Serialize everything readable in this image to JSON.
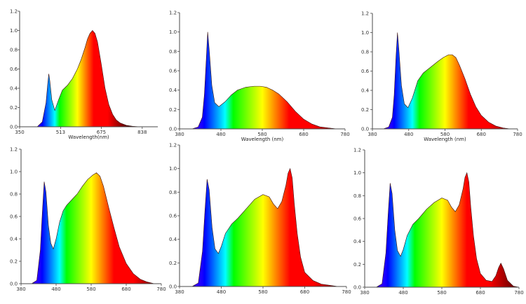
{
  "chart_data": [
    {
      "type": "area",
      "panel": "top-left",
      "xlabel": "Wavelength(nm)",
      "xlim": [
        350,
        900
      ],
      "ylim": [
        0,
        1.2
      ],
      "x_ticks": [
        "350",
        "513",
        "675",
        "838"
      ],
      "y_ticks": [
        "0.0",
        "0.2",
        "0.4",
        "0.6",
        "0.8",
        "1.0",
        "1.2"
      ],
      "x": [
        350,
        420,
        440,
        455,
        462,
        466,
        470,
        478,
        490,
        505,
        520,
        540,
        560,
        580,
        595,
        610,
        620,
        630,
        640,
        650,
        660,
        675,
        690,
        705,
        720,
        735,
        750,
        775,
        800,
        830,
        860,
        900
      ],
      "values": [
        0,
        0,
        0.05,
        0.25,
        0.45,
        0.55,
        0.48,
        0.28,
        0.17,
        0.28,
        0.38,
        0.43,
        0.5,
        0.6,
        0.7,
        0.82,
        0.91,
        0.97,
        1.0,
        0.97,
        0.88,
        0.65,
        0.4,
        0.23,
        0.13,
        0.07,
        0.04,
        0.015,
        0.005,
        0,
        0,
        0
      ]
    },
    {
      "type": "area",
      "panel": "top-middle",
      "xlabel": "Wavelength (nm)",
      "xlim": [
        380,
        780
      ],
      "ylim": [
        0,
        1.2
      ],
      "x_ticks": [
        "380",
        "480",
        "580",
        "680",
        "780"
      ],
      "y_ticks": [
        "0.0",
        "0.2",
        "0.4",
        "0.6",
        "0.8",
        "1.0",
        "1.2"
      ],
      "x": [
        380,
        410,
        425,
        435,
        440,
        445,
        448,
        452,
        458,
        465,
        475,
        490,
        505,
        520,
        540,
        560,
        575,
        590,
        605,
        620,
        640,
        660,
        680,
        700,
        720,
        740,
        760,
        780
      ],
      "values": [
        0,
        0,
        0.02,
        0.12,
        0.35,
        0.75,
        1.0,
        0.8,
        0.45,
        0.27,
        0.23,
        0.28,
        0.35,
        0.4,
        0.43,
        0.44,
        0.44,
        0.43,
        0.4,
        0.36,
        0.28,
        0.18,
        0.1,
        0.05,
        0.02,
        0.01,
        0,
        0
      ]
    },
    {
      "type": "area",
      "panel": "top-right",
      "xlabel": "Wavelength (nm)",
      "xlim": [
        380,
        780
      ],
      "ylim": [
        0,
        1.2
      ],
      "x_ticks": [
        "380",
        "480",
        "580",
        "680",
        "780"
      ],
      "y_ticks": [
        "0.0",
        "0.2",
        "0.4",
        "0.6",
        "0.8",
        "1.0",
        "1.2"
      ],
      "x": [
        380,
        410,
        425,
        435,
        440,
        445,
        449,
        453,
        460,
        468,
        478,
        490,
        505,
        520,
        540,
        560,
        575,
        590,
        600,
        610,
        620,
        635,
        650,
        665,
        680,
        700,
        720,
        740,
        760,
        780
      ],
      "values": [
        0,
        0,
        0.02,
        0.12,
        0.35,
        0.75,
        1.0,
        0.82,
        0.45,
        0.26,
        0.22,
        0.32,
        0.5,
        0.58,
        0.64,
        0.7,
        0.74,
        0.77,
        0.77,
        0.74,
        0.66,
        0.52,
        0.36,
        0.23,
        0.14,
        0.07,
        0.03,
        0.01,
        0,
        0
      ]
    },
    {
      "type": "area",
      "panel": "bottom-left",
      "xlabel": "",
      "xlim": [
        380,
        780
      ],
      "ylim": [
        0,
        1.2
      ],
      "x_ticks": [
        "380",
        "480",
        "580",
        "680",
        "780"
      ],
      "y_ticks": [
        "0.0",
        "0.2",
        "0.4",
        "0.6",
        "0.8",
        "1.0",
        "1.2"
      ],
      "x": [
        380,
        410,
        425,
        435,
        441,
        446,
        451,
        458,
        465,
        472,
        480,
        490,
        500,
        510,
        525,
        540,
        555,
        570,
        585,
        595,
        605,
        615,
        630,
        645,
        660,
        680,
        700,
        720,
        740,
        760,
        780
      ],
      "values": [
        0,
        0,
        0.03,
        0.3,
        0.65,
        0.91,
        0.82,
        0.52,
        0.36,
        0.31,
        0.4,
        0.55,
        0.65,
        0.7,
        0.75,
        0.8,
        0.87,
        0.93,
        0.97,
        0.99,
        0.96,
        0.87,
        0.68,
        0.5,
        0.33,
        0.18,
        0.09,
        0.04,
        0.015,
        0,
        0
      ]
    },
    {
      "type": "area",
      "panel": "bottom-middle",
      "xlabel": "",
      "xlim": [
        380,
        780
      ],
      "ylim": [
        0,
        1.2
      ],
      "x_ticks": [
        "380",
        "480",
        "580",
        "680",
        "780"
      ],
      "y_ticks": [
        "0.0",
        "0.2",
        "0.4",
        "0.6",
        "0.8",
        "1.0",
        "1.2"
      ],
      "x": [
        380,
        410,
        425,
        435,
        441,
        446,
        451,
        458,
        465,
        473,
        480,
        490,
        505,
        520,
        540,
        560,
        580,
        595,
        605,
        615,
        625,
        635,
        640,
        645,
        650,
        655,
        662,
        670,
        680,
        700,
        720,
        740,
        760,
        780
      ],
      "values": [
        0,
        0,
        0.03,
        0.3,
        0.65,
        0.91,
        0.82,
        0.5,
        0.32,
        0.28,
        0.34,
        0.45,
        0.53,
        0.58,
        0.66,
        0.74,
        0.78,
        0.76,
        0.7,
        0.66,
        0.72,
        0.86,
        0.96,
        1.0,
        0.92,
        0.7,
        0.45,
        0.25,
        0.12,
        0.05,
        0.02,
        0.01,
        0,
        0
      ]
    },
    {
      "type": "area",
      "panel": "bottom-right",
      "xlabel": "",
      "xlim": [
        380,
        780
      ],
      "ylim": [
        0,
        1.2
      ],
      "x_ticks": [
        "380",
        "480",
        "580",
        "680",
        "780"
      ],
      "y_ticks": [
        "0.0",
        "0.2",
        "0.4",
        "0.6",
        "0.8",
        "1.0",
        "1.2"
      ],
      "x": [
        380,
        410,
        425,
        435,
        441,
        446,
        451,
        458,
        465,
        473,
        480,
        490,
        505,
        520,
        540,
        560,
        580,
        595,
        605,
        615,
        625,
        635,
        640,
        645,
        650,
        655,
        662,
        670,
        680,
        695,
        710,
        720,
        727,
        733,
        740,
        750,
        765,
        780
      ],
      "values": [
        0,
        0,
        0.03,
        0.3,
        0.65,
        0.91,
        0.82,
        0.5,
        0.32,
        0.27,
        0.33,
        0.45,
        0.55,
        0.6,
        0.68,
        0.74,
        0.78,
        0.76,
        0.7,
        0.66,
        0.72,
        0.86,
        0.96,
        1.0,
        0.92,
        0.7,
        0.45,
        0.25,
        0.12,
        0.06,
        0.05,
        0.1,
        0.17,
        0.21,
        0.16,
        0.06,
        0.01,
        0
      ]
    }
  ]
}
